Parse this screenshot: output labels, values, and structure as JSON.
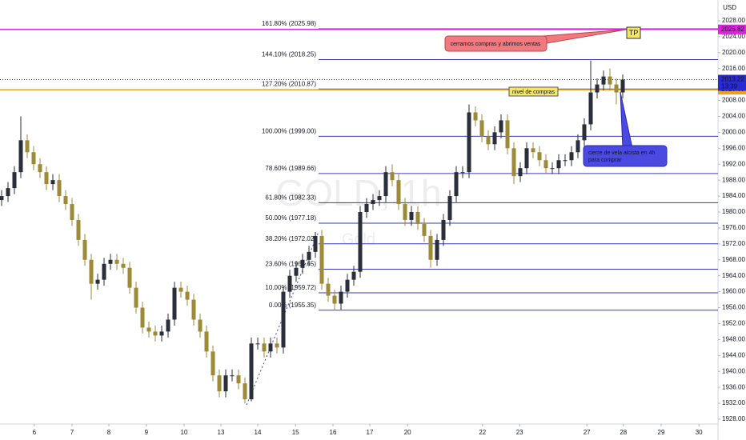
{
  "chart_data": {
    "type": "candlestick",
    "watermark": "GOLD, 1h",
    "watermark_sub": "Gold",
    "currency": "USD",
    "up_color": "#2a2e39",
    "down_color": "#9c8a3a",
    "open": [
      1983,
      1984,
      1986,
      1990,
      1998,
      1995,
      1992,
      1990,
      1987,
      1988,
      1984,
      1982,
      1978,
      1973,
      1968,
      1962,
      1963,
      1967,
      1968,
      1967,
      1966,
      1961,
      1956,
      1951,
      1950,
      1949,
      1950,
      1953,
      1961,
      1960,
      1958,
      1953,
      1950,
      1945,
      1939,
      1935,
      1939,
      1939,
      1937,
      1933,
      1947,
      1947,
      1945,
      1947,
      1946,
      1960,
      1964,
      1966,
      1968,
      1970,
      1974,
      1962,
      1959,
      1957,
      1960,
      1963,
      1965,
      1980,
      1982,
      1983,
      1984,
      1990,
      1988,
      1982,
      1978,
      1980,
      1977,
      1974,
      1968,
      1973,
      1978,
      1984,
      1990,
      1990,
      2005,
      2003,
      1999,
      1997,
      2000,
      2003,
      1996,
      1989,
      1991,
      1996,
      1995,
      1993,
      1991,
      1991,
      1993,
      1993,
      1995,
      1998,
      2002,
      2010,
      2012,
      2014,
      2012,
      2010
    ],
    "high": [
      1985.5,
      1987.5,
      1991.5,
      2004,
      1999.5,
      1996.5,
      1993.5,
      1991.5,
      1989.5,
      1989.5,
      1985.5,
      1983.5,
      1979.5,
      1974.5,
      1969.5,
      1964.5,
      1968.5,
      1969.5,
      1969.5,
      1968.5,
      1967.5,
      1962.5,
      1957.5,
      1952.5,
      1951.5,
      1951.5,
      1954.5,
      1962.5,
      1962.5,
      1961.5,
      1959.5,
      1954.5,
      1951.5,
      1946.5,
      1940.5,
      1940.5,
      1940.5,
      1940.5,
      1938.5,
      1948.5,
      1948.5,
      1948.5,
      1948.5,
      1948.5,
      1961.5,
      1965.5,
      1967.5,
      1969.5,
      1971.5,
      1975,
      1975.5,
      1963.5,
      1960.5,
      1961.5,
      1964.5,
      1966.5,
      1981.5,
      1983.5,
      1984.5,
      1985.5,
      1991.5,
      1992,
      1989.5,
      1983.5,
      1981.5,
      1981.5,
      1978.5,
      1975.5,
      1974.5,
      1979.5,
      1985.5,
      1991.5,
      1991.5,
      2007,
      2006.5,
      2004.5,
      2000.5,
      2001.5,
      2004.5,
      2004.5,
      1997.5,
      1992.5,
      1997.5,
      1997.5,
      1996.5,
      1994.5,
      1992.5,
      1994.5,
      1994.5,
      1996.5,
      1999.5,
      2003.5,
      2018,
      2013.5,
      2015.5,
      2016,
      2013.5,
      2014.5
    ],
    "low": [
      1981.5,
      1982.5,
      1984.5,
      1988.5,
      1993.5,
      1990.5,
      1988.5,
      1985.5,
      1985.5,
      1982.5,
      1980.5,
      1976.5,
      1971.5,
      1966.5,
      1958,
      1960.5,
      1961.5,
      1965.5,
      1965.5,
      1964.5,
      1959.5,
      1954.5,
      1949.5,
      1948.5,
      1947.5,
      1947.5,
      1948.5,
      1951.5,
      1958.5,
      1956.5,
      1951.5,
      1948.5,
      1943.5,
      1937.5,
      1933.5,
      1933.5,
      1937.5,
      1935.5,
      1932,
      1932.5,
      1945.5,
      1943.5,
      1943.5,
      1944.5,
      1944.5,
      1958.5,
      1962.5,
      1964.5,
      1966.5,
      1968.5,
      1960.5,
      1957.5,
      1955.5,
      1955.5,
      1958.5,
      1961.5,
      1963.5,
      1978.5,
      1980.5,
      1981.5,
      1982.5,
      1986.5,
      1980.5,
      1976.5,
      1976.5,
      1975.5,
      1972.5,
      1966,
      1966.5,
      1971.5,
      1976.5,
      1982.5,
      1988.5,
      1988.5,
      2001.5,
      1997.5,
      1995.5,
      1995.5,
      1998.5,
      1994.5,
      1987,
      1987.5,
      1989.5,
      1993.5,
      1991.5,
      1989.5,
      1989.5,
      1989.5,
      1991.5,
      1991.5,
      1993.5,
      1996.5,
      2000.5,
      2008.5,
      2010.5,
      2010.5,
      2007,
      2008.5
    ],
    "close": [
      1984,
      1986,
      1990,
      1998,
      1995,
      1992,
      1990,
      1987,
      1988,
      1984,
      1982,
      1978,
      1973,
      1968,
      1962,
      1963,
      1967,
      1968,
      1967,
      1966,
      1961,
      1956,
      1951,
      1950,
      1949,
      1950,
      1953,
      1961,
      1960,
      1958,
      1953,
      1950,
      1945,
      1939,
      1935,
      1939,
      1939,
      1937,
      1933,
      1947,
      1947,
      1945,
      1947,
      1946,
      1960,
      1964,
      1966,
      1968,
      1970,
      1974,
      1962,
      1959,
      1957,
      1960,
      1963,
      1965,
      1980,
      1982,
      1983,
      1984,
      1990,
      1988,
      1982,
      1978,
      1980,
      1977,
      1974,
      1968,
      1973,
      1978,
      1984,
      1990,
      1990,
      2005,
      2003,
      1999,
      1997,
      2000,
      2003,
      1996,
      1989,
      1991,
      1996,
      1995,
      1993,
      1991,
      1991,
      1993,
      1993,
      1995,
      1998,
      2002,
      2010,
      2012,
      2014,
      2012,
      2010,
      2013.22
    ],
    "xlim": [
      -0.25,
      111.875
    ],
    "xticks": [
      {
        "value": 5.1,
        "label": "6"
      },
      {
        "value": 11,
        "label": "7"
      },
      {
        "value": 16.75,
        "label": "8"
      },
      {
        "value": 22.6,
        "label": "9"
      },
      {
        "value": 28.5,
        "label": "10"
      },
      {
        "value": 34.25,
        "label": "13"
      },
      {
        "value": 40,
        "label": "14"
      },
      {
        "value": 45.9,
        "label": "15"
      },
      {
        "value": 51.75,
        "label": "16"
      },
      {
        "value": 57.5,
        "label": "17"
      },
      {
        "value": 63.4,
        "label": "20"
      },
      {
        "value": 75.1,
        "label": "22"
      },
      {
        "value": 80.9,
        "label": "23"
      },
      {
        "value": 91.4,
        "label": "27"
      },
      {
        "value": 97.1,
        "label": "28"
      },
      {
        "value": 103,
        "label": "29"
      },
      {
        "value": 108.9,
        "label": "30"
      }
    ],
    "ylim": [
      1926.8,
      2033.2
    ],
    "yticks": [
      {
        "value": 1928,
        "label": "1928.00"
      },
      {
        "value": 1932,
        "label": "1932.00"
      },
      {
        "value": 1936,
        "label": "1936.00"
      },
      {
        "value": 1940,
        "label": "1940.00"
      },
      {
        "value": 1944,
        "label": "1944.00"
      },
      {
        "value": 1948,
        "label": "1948.00"
      },
      {
        "value": 1952,
        "label": "1952.00"
      },
      {
        "value": 1956,
        "label": "1956.00"
      },
      {
        "value": 1960,
        "label": "1960.00"
      },
      {
        "value": 1964,
        "label": "1964.00"
      },
      {
        "value": 1968,
        "label": "1968.00"
      },
      {
        "value": 1972,
        "label": "1972.00"
      },
      {
        "value": 1976,
        "label": "1976.00"
      },
      {
        "value": 1980,
        "label": "1980.00"
      },
      {
        "value": 1984,
        "label": "1984.00"
      },
      {
        "value": 1988,
        "label": "1988.00"
      },
      {
        "value": 1992,
        "label": "1992.00"
      },
      {
        "value": 1996,
        "label": "1996.00"
      },
      {
        "value": 2000,
        "label": "2000.00"
      },
      {
        "value": 2004,
        "label": "2004.00"
      },
      {
        "value": 2008,
        "label": "2008.00"
      },
      {
        "value": 2012,
        "label": "2012.00"
      },
      {
        "value": 2016,
        "label": "2016.00"
      },
      {
        "value": 2020,
        "label": "2020.00"
      },
      {
        "value": 2024,
        "label": "2024.00"
      },
      {
        "value": 2028,
        "label": "2028.00"
      }
    ],
    "grid": false,
    "fib_color": "#3a3ab8",
    "fib_levels": [
      {
        "label": "161.80% (2025.98)",
        "value": 2025.98
      },
      {
        "label": "144.10% (2018.25)",
        "value": 2018.25
      },
      {
        "label": "127.20% (2010.87)",
        "value": 2010.87
      },
      {
        "label": "100.00% (1999.00)",
        "value": 1999.0
      },
      {
        "label": "78.60% (1989.66)",
        "value": 1989.66
      },
      {
        "label": "61.80% (1982.33)",
        "value": 1982.33
      },
      {
        "label": "50.00% (1977.18)",
        "value": 1977.18
      },
      {
        "label": "38.20% (1972.02)",
        "value": 1972.02
      },
      {
        "label": "23.60% (1965.65)",
        "value": 1965.65
      },
      {
        "label": "10.00% (1959.72)",
        "value": 1959.72
      },
      {
        "label": "0.00% (1955.35)",
        "value": 1955.35
      }
    ],
    "price_lines": [
      {
        "value": 2025.82,
        "color": "#e020e0"
      },
      {
        "value": 2010.69,
        "color": "#f0a020"
      }
    ],
    "last_price": {
      "value": 2013.22,
      "countdown": "13:39",
      "color": "#2a2ad0"
    },
    "annotations": {
      "sell": "cerramos compras y abrimos ventas",
      "tp": "TP",
      "buy_level": "nivel de compras",
      "entry": [
        "cierre de vela alcista en 4h",
        "para comprar"
      ]
    }
  }
}
